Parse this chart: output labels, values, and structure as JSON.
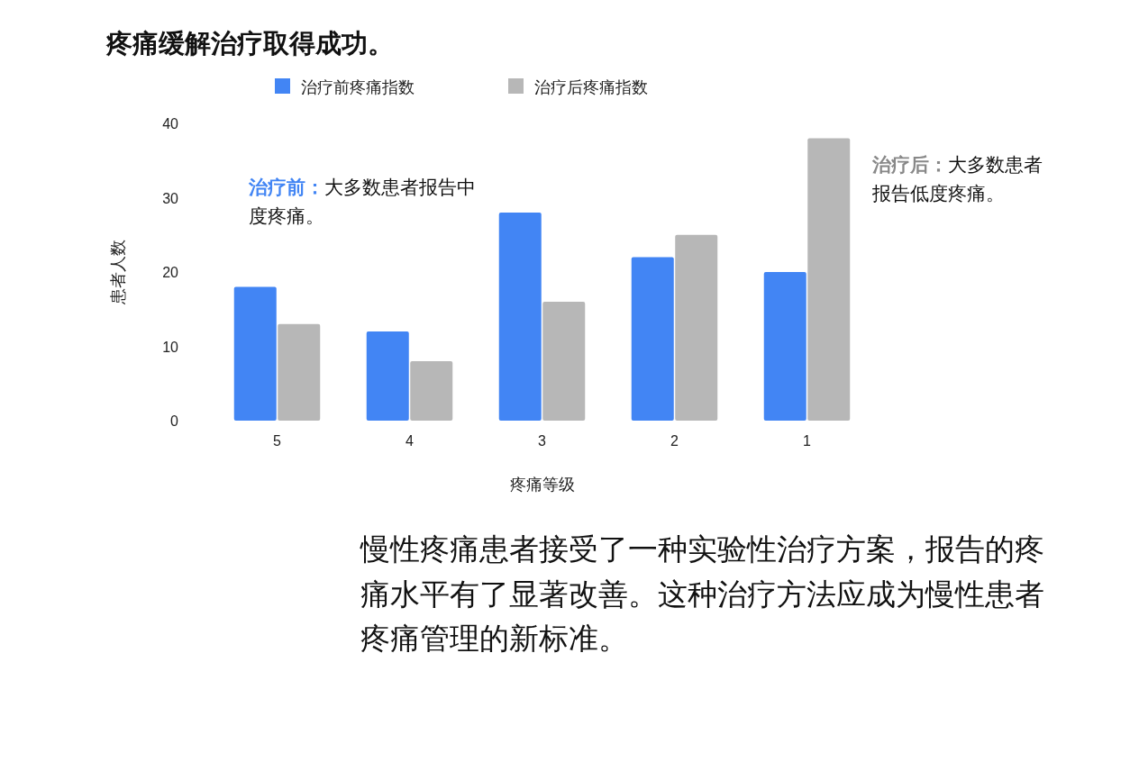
{
  "chart_data": {
    "type": "bar",
    "title": "疼痛缓解治疗取得成功。",
    "xlabel": "疼痛等级",
    "ylabel": "患者人数",
    "categories": [
      "5",
      "4",
      "3",
      "2",
      "1"
    ],
    "series": [
      {
        "name": "治疗前疼痛指数",
        "color": "#4285f4",
        "values": [
          18,
          12,
          28,
          22,
          20
        ]
      },
      {
        "name": "治疗后疼痛指数",
        "color": "#b7b7b7",
        "values": [
          13,
          8,
          16,
          25,
          38
        ]
      }
    ],
    "ylim": [
      0,
      40
    ],
    "yticks": [
      0,
      10,
      20,
      30,
      40
    ],
    "grid": false,
    "legend": "top",
    "annotations": [
      "治疗前：大多数患者报告中度疼痛。",
      "治疗后：大多数患者报告低度疼痛。",
      "慢性疼痛患者接受了一种实验性治疗方案，报告的疼痛水平有了显著改善。这种治疗方法应成为慢性患者疼痛管理的新标准。"
    ]
  }
}
